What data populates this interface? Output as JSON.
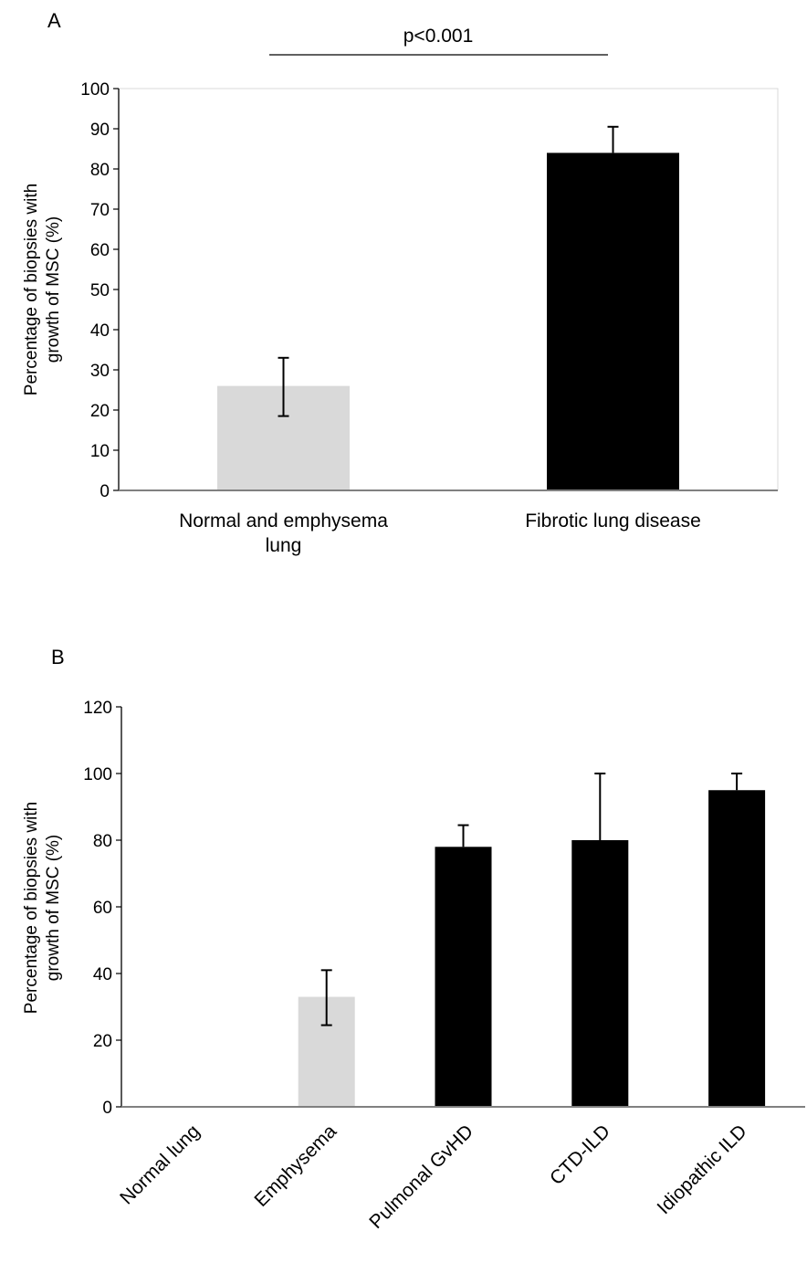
{
  "chart_data": [
    {
      "type": "bar",
      "panel_label": "A",
      "categories": [
        "Normal and emphysema lung",
        "Fibrotic lung disease"
      ],
      "category_lines": [
        [
          "Normal and emphysema",
          "lung"
        ],
        [
          "Fibrotic lung disease"
        ]
      ],
      "values": [
        26,
        84
      ],
      "error_upper": [
        33,
        90.5
      ],
      "error_lower": [
        18.5,
        84
      ],
      "bar_colors": [
        "#d9d9d9",
        "#000000"
      ],
      "ylabel_lines": [
        "Percentage of biopsies with",
        "growth of MSC (%)"
      ],
      "ylim": [
        0,
        100
      ],
      "yticks": [
        "0",
        "10",
        "20",
        "30",
        "40",
        "50",
        "60",
        "70",
        "80",
        "90",
        "100"
      ],
      "annotation": "p<0.001",
      "grid": false
    },
    {
      "type": "bar",
      "panel_label": "B",
      "categories": [
        "Normal lung",
        "Emphysema",
        "Pulmonal  GvHD",
        "CTD-ILD",
        "Idiopathic ILD"
      ],
      "values": [
        0,
        33,
        78,
        80,
        95
      ],
      "error_upper": [
        0,
        41,
        84.5,
        100,
        100
      ],
      "error_lower": [
        0,
        24.5,
        78,
        80,
        95
      ],
      "bar_colors": [
        "#ffffff",
        "#d9d9d9",
        "#000000",
        "#000000",
        "#000000"
      ],
      "ylabel_lines": [
        "Percentage of biopsies with",
        "growth of MSC (%)"
      ],
      "ylim": [
        0,
        120
      ],
      "yticks": [
        "0",
        "20",
        "40",
        "60",
        "80",
        "100",
        "120"
      ],
      "grid": false
    }
  ]
}
